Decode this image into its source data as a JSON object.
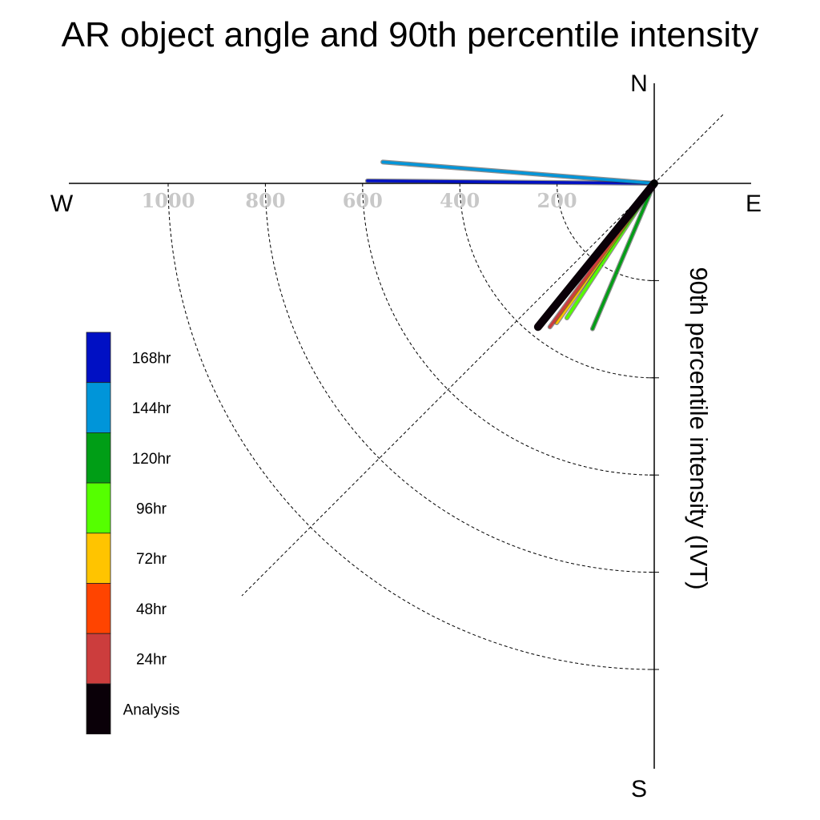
{
  "chart_data": {
    "type": "polar-vector",
    "title": "AR object angle and 90th percentile intensity",
    "radial_label": "90th percentile intensity (IVT)",
    "compass": {
      "north": "N",
      "south": "S",
      "east": "E",
      "west": "W"
    },
    "radial_ticks": [
      200,
      400,
      600,
      800,
      1000
    ],
    "radial_tick_labels": [
      "200",
      "400",
      "600",
      "800",
      "1000"
    ],
    "rmax": 1200,
    "series": [
      {
        "name": "168hr",
        "color": "#0010c4",
        "angle_deg": 270.5,
        "intensity": 590
      },
      {
        "name": "144hr",
        "color": "#0095d9",
        "angle_deg": 274.5,
        "intensity": 560
      },
      {
        "name": "120hr",
        "color": "#009e16",
        "angle_deg": 203,
        "intensity": 325
      },
      {
        "name": "96hr",
        "color": "#55ff00",
        "angle_deg": 213,
        "intensity": 330
      },
      {
        "name": "72hr",
        "color": "#ffc400",
        "angle_deg": 215,
        "intensity": 350
      },
      {
        "name": "48hr",
        "color": "#ff4400",
        "angle_deg": 219,
        "intensity": 350
      },
      {
        "name": "24hr",
        "color": "#cc3d3d",
        "angle_deg": 216,
        "intensity": 365
      },
      {
        "name": "Analysis",
        "color": "#0a0008",
        "angle_deg": 219,
        "intensity": 380
      }
    ],
    "legend_order": [
      "168hr",
      "144hr",
      "120hr",
      "96hr",
      "72hr",
      "48hr",
      "24hr",
      "Analysis"
    ]
  }
}
